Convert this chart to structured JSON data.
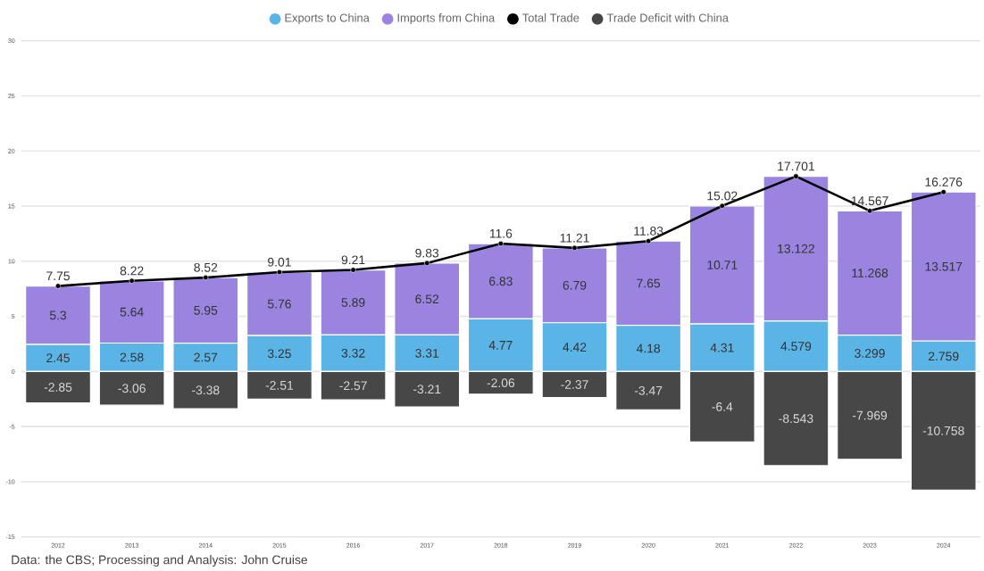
{
  "chart_data": {
    "type": "bar",
    "stacked": true,
    "categories": [
      "2012",
      "2013",
      "2014",
      "2015",
      "2016",
      "2017",
      "2018",
      "2019",
      "2020",
      "2021",
      "2022",
      "2023",
      "2024"
    ],
    "series": [
      {
        "name": "Exports to China",
        "color": "#5ab4e5",
        "values": [
          2.45,
          2.58,
          2.57,
          3.25,
          3.32,
          3.31,
          4.77,
          4.42,
          4.18,
          4.31,
          4.579,
          3.299,
          2.759
        ]
      },
      {
        "name": "Imports from China",
        "color": "#9a84e0",
        "values": [
          5.3,
          5.64,
          5.95,
          5.76,
          5.89,
          6.52,
          6.83,
          6.79,
          7.65,
          10.71,
          13.122,
          11.268,
          13.517
        ]
      },
      {
        "name": "Total Trade",
        "type": "line",
        "color": "#000000",
        "values": [
          7.75,
          8.22,
          8.52,
          9.01,
          9.21,
          9.83,
          11.6,
          11.21,
          11.83,
          15.02,
          17.701,
          14.567,
          16.276
        ]
      },
      {
        "name": "Trade Deficit with China",
        "color": "#474747",
        "values": [
          -2.85,
          -3.06,
          -3.38,
          -2.51,
          -2.57,
          -3.21,
          -2.06,
          -2.37,
          -3.47,
          -6.4,
          -8.543,
          -7.969,
          -10.758
        ]
      }
    ],
    "ylim": [
      -15,
      30
    ],
    "yticks": [
      -15,
      -10,
      -5,
      0,
      5,
      10,
      15,
      20,
      25,
      30
    ],
    "grid": "y",
    "legend": "top",
    "marker": "circle",
    "data_labels": true,
    "annotations": [
      "Data: the CBS; Processing and Analysis: John Cruise"
    ]
  }
}
